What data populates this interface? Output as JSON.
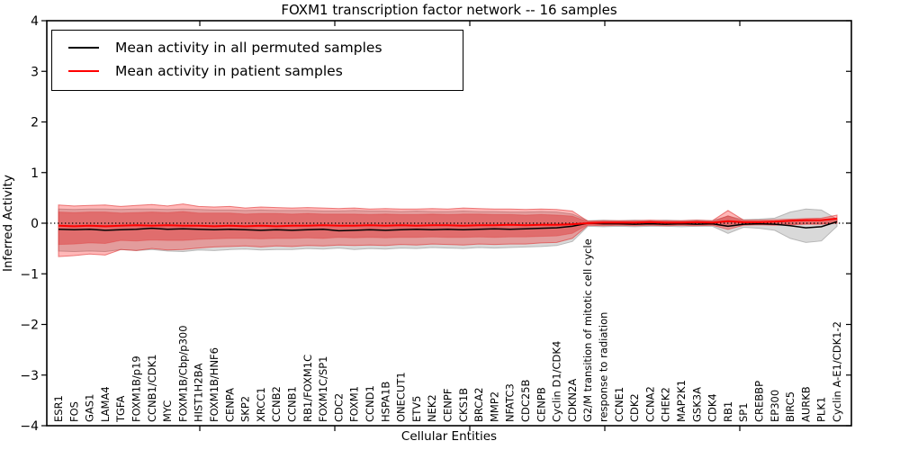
{
  "chart": {
    "title": "FOXM1 transcription factor network -- 16 samples",
    "xlabel": "Cellular Entities",
    "ylabel": "Inferred Activity",
    "legend": [
      {
        "label": "Mean activity in all permuted samples",
        "color": "#000000"
      },
      {
        "label": "Mean activity in patient samples",
        "color": "#ff0000"
      }
    ]
  },
  "chart_data": {
    "type": "line",
    "title": "FOXM1 transcription factor network -- 16 samples",
    "xlabel": "Cellular Entities",
    "ylabel": "Inferred Activity",
    "ylim": [
      -4,
      4
    ],
    "ytick_values": [
      4,
      3,
      2,
      1,
      0,
      -1,
      -2,
      -3,
      -4
    ],
    "ytick_labels": [
      "4",
      "3",
      "2",
      "1",
      "0",
      "−1",
      "−2",
      "−3",
      "−4"
    ],
    "grid": false,
    "legend_position": "upper left",
    "zero_line": {
      "style": "dotted",
      "color": "#000000",
      "value": 0
    },
    "categories": [
      "ESR1",
      "FOS",
      "GAS1",
      "LAMA4",
      "TGFA",
      "FOXM1B/p19",
      "CCNB1/CDK1",
      "MYC",
      "FOXM1B/Cbp/p300",
      "HIST1H2BA",
      "FOXM1B/HNF6",
      "CENPA",
      "SKP2",
      "XRCC1",
      "CCNB2",
      "CCNB1",
      "RB1/FOXM1C",
      "FOXM1C/SP1",
      "CDC2",
      "FOXM1",
      "CCND1",
      "HSPA1B",
      "ONECUT1",
      "ETV5",
      "NEK2",
      "CENPF",
      "CKS1B",
      "BRCA2",
      "MMP2",
      "NFATC3",
      "CDC25B",
      "CENPB",
      "Cyclin D1/CDK4",
      "CDKN2A",
      "G2/M transition of mitotic cell cycle",
      "response to radiation",
      "CCNE1",
      "CDK2",
      "CCNA2",
      "CHEK2",
      "MAP2K1",
      "GSK3A",
      "CDK4",
      "RB1",
      "SP1",
      "CREBBP",
      "EP300",
      "BIRC5",
      "AURKB",
      "PLK1",
      "Cyclin A-E1/CDK1-2"
    ],
    "series": [
      {
        "name": "Mean activity in all permuted samples",
        "color": "#000000",
        "width": 1.5,
        "values": [
          -0.12,
          -0.13,
          -0.12,
          -0.14,
          -0.13,
          -0.12,
          -0.1,
          -0.12,
          -0.11,
          -0.12,
          -0.13,
          -0.12,
          -0.13,
          -0.14,
          -0.13,
          -0.14,
          -0.13,
          -0.12,
          -0.15,
          -0.14,
          -0.13,
          -0.14,
          -0.13,
          -0.12,
          -0.13,
          -0.12,
          -0.13,
          -0.12,
          -0.11,
          -0.12,
          -0.11,
          -0.1,
          -0.09,
          -0.06,
          0.0,
          -0.01,
          -0.01,
          -0.02,
          -0.01,
          -0.02,
          -0.01,
          -0.02,
          -0.01,
          -0.06,
          -0.02,
          -0.01,
          -0.02,
          -0.05,
          -0.09,
          -0.07,
          0.03
        ]
      },
      {
        "name": "Mean activity in patient samples",
        "color": "#ff0000",
        "width": 2,
        "values": [
          -0.05,
          -0.06,
          -0.05,
          -0.06,
          -0.05,
          -0.04,
          -0.05,
          -0.04,
          -0.05,
          -0.05,
          -0.06,
          -0.05,
          -0.06,
          -0.05,
          -0.06,
          -0.05,
          -0.05,
          -0.04,
          -0.05,
          -0.05,
          -0.04,
          -0.05,
          -0.04,
          -0.05,
          -0.04,
          -0.04,
          -0.05,
          -0.04,
          -0.04,
          -0.03,
          -0.04,
          -0.03,
          -0.03,
          -0.02,
          0.0,
          0.01,
          0.01,
          0.01,
          0.02,
          0.01,
          0.01,
          0.02,
          0.01,
          0.04,
          0.02,
          0.02,
          0.03,
          0.05,
          0.06,
          0.06,
          0.09
        ]
      }
    ],
    "bands": [
      {
        "name": "permuted-band",
        "fill": "#888888",
        "opacity": 0.32,
        "edge": "#aaaaaa",
        "edge_opacity": 0.8,
        "upper": [
          0.28,
          0.27,
          0.28,
          0.28,
          0.27,
          0.28,
          0.28,
          0.27,
          0.28,
          0.27,
          0.26,
          0.26,
          0.25,
          0.26,
          0.25,
          0.25,
          0.25,
          0.24,
          0.24,
          0.25,
          0.24,
          0.24,
          0.23,
          0.24,
          0.23,
          0.23,
          0.24,
          0.23,
          0.23,
          0.22,
          0.22,
          0.23,
          0.22,
          0.18,
          0.05,
          0.06,
          0.05,
          0.06,
          0.05,
          0.06,
          0.05,
          0.06,
          0.05,
          0.14,
          0.07,
          0.08,
          0.1,
          0.22,
          0.28,
          0.26,
          0.08
        ],
        "lower": [
          -0.55,
          -0.56,
          -0.55,
          -0.56,
          -0.52,
          -0.54,
          -0.52,
          -0.55,
          -0.56,
          -0.53,
          -0.54,
          -0.52,
          -0.51,
          -0.53,
          -0.52,
          -0.52,
          -0.5,
          -0.51,
          -0.49,
          -0.52,
          -0.5,
          -0.51,
          -0.49,
          -0.5,
          -0.48,
          -0.49,
          -0.5,
          -0.48,
          -0.49,
          -0.48,
          -0.47,
          -0.46,
          -0.44,
          -0.36,
          -0.06,
          -0.07,
          -0.06,
          -0.07,
          -0.06,
          -0.06,
          -0.07,
          -0.06,
          -0.06,
          -0.2,
          -0.08,
          -0.1,
          -0.14,
          -0.3,
          -0.38,
          -0.35,
          -0.06
        ]
      },
      {
        "name": "patient-band-outer",
        "fill": "#ff0000",
        "opacity": 0.28,
        "edge": "#e03030",
        "edge_opacity": 0.6,
        "upper": [
          0.36,
          0.34,
          0.35,
          0.36,
          0.33,
          0.35,
          0.37,
          0.34,
          0.38,
          0.33,
          0.32,
          0.33,
          0.3,
          0.32,
          0.31,
          0.3,
          0.31,
          0.3,
          0.29,
          0.3,
          0.28,
          0.29,
          0.28,
          0.28,
          0.29,
          0.28,
          0.3,
          0.29,
          0.28,
          0.28,
          0.27,
          0.28,
          0.27,
          0.24,
          0.04,
          0.05,
          0.05,
          0.05,
          0.06,
          0.05,
          0.05,
          0.06,
          0.05,
          0.25,
          0.06,
          0.06,
          0.07,
          0.08,
          0.09,
          0.1,
          0.16
        ],
        "lower": [
          -0.66,
          -0.64,
          -0.61,
          -0.63,
          -0.52,
          -0.54,
          -0.5,
          -0.53,
          -0.52,
          -0.49,
          -0.47,
          -0.46,
          -0.45,
          -0.47,
          -0.45,
          -0.46,
          -0.44,
          -0.45,
          -0.43,
          -0.44,
          -0.43,
          -0.44,
          -0.42,
          -0.43,
          -0.41,
          -0.42,
          -0.43,
          -0.41,
          -0.42,
          -0.41,
          -0.41,
          -0.39,
          -0.38,
          -0.3,
          -0.04,
          -0.05,
          -0.04,
          -0.05,
          -0.04,
          -0.05,
          -0.04,
          -0.05,
          -0.04,
          -0.12,
          -0.04,
          -0.03,
          -0.04,
          -0.03,
          -0.02,
          -0.02,
          0.0
        ]
      },
      {
        "name": "patient-band-inner",
        "fill": "#dd2222",
        "opacity": 0.38,
        "edge": "#e03030",
        "edge_opacity": 0.35,
        "upper": [
          0.22,
          0.21,
          0.22,
          0.22,
          0.2,
          0.21,
          0.22,
          0.21,
          0.23,
          0.2,
          0.2,
          0.2,
          0.18,
          0.19,
          0.19,
          0.18,
          0.19,
          0.18,
          0.18,
          0.18,
          0.17,
          0.18,
          0.17,
          0.17,
          0.18,
          0.17,
          0.18,
          0.18,
          0.17,
          0.17,
          0.16,
          0.17,
          0.16,
          0.14,
          0.03,
          0.03,
          0.03,
          0.03,
          0.04,
          0.03,
          0.03,
          0.04,
          0.03,
          0.15,
          0.04,
          0.04,
          0.04,
          0.05,
          0.06,
          0.06,
          0.1
        ],
        "lower": [
          -0.42,
          -0.41,
          -0.39,
          -0.4,
          -0.34,
          -0.35,
          -0.33,
          -0.34,
          -0.34,
          -0.32,
          -0.31,
          -0.3,
          -0.3,
          -0.31,
          -0.3,
          -0.3,
          -0.29,
          -0.3,
          -0.28,
          -0.29,
          -0.28,
          -0.29,
          -0.28,
          -0.28,
          -0.27,
          -0.28,
          -0.28,
          -0.27,
          -0.28,
          -0.27,
          -0.27,
          -0.26,
          -0.25,
          -0.2,
          -0.03,
          -0.03,
          -0.03,
          -0.03,
          -0.03,
          -0.03,
          -0.03,
          -0.03,
          -0.03,
          -0.07,
          -0.03,
          -0.02,
          -0.02,
          -0.02,
          -0.01,
          -0.01,
          0.01
        ]
      }
    ]
  }
}
